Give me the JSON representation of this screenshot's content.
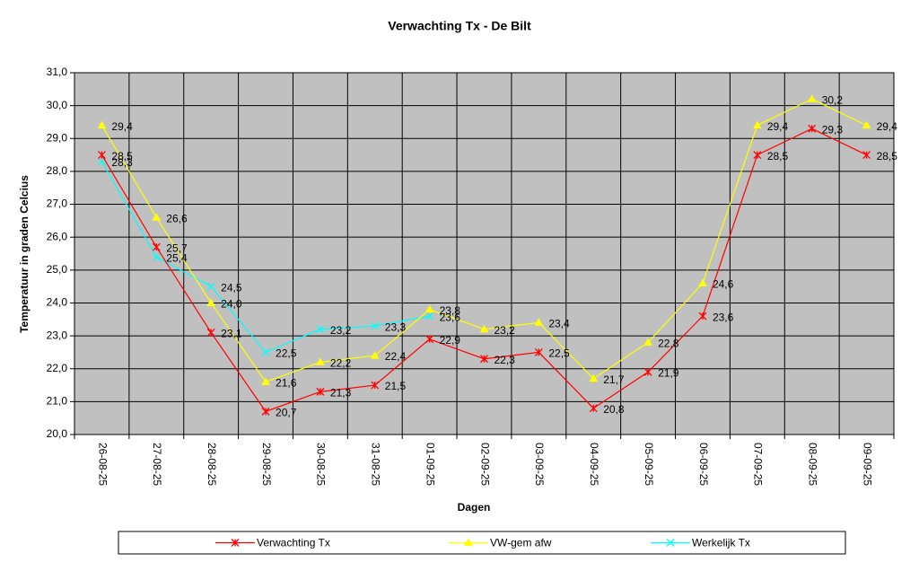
{
  "chart_data": {
    "type": "line",
    "title": "Verwachting Tx - De Bilt",
    "x_label": "Dagen",
    "y_label": "Temperatuur in graden Celcius",
    "categories": [
      "26-08-25",
      "27-08-25",
      "28-08-25",
      "29-08-25",
      "30-08-25",
      "31-08-25",
      "01-09-25",
      "02-09-25",
      "03-09-25",
      "04-09-25",
      "05-09-25",
      "06-09-25",
      "07-09-25",
      "08-09-25",
      "09-09-25"
    ],
    "series": [
      {
        "name": "Verwachting Tx",
        "color": "#ff0000",
        "marker": "star",
        "values": [
          28.5,
          25.7,
          23.1,
          20.7,
          21.3,
          21.5,
          22.9,
          22.3,
          22.5,
          20.8,
          21.9,
          23.6,
          28.5,
          29.3,
          28.5
        ],
        "value_labels": [
          "28,5",
          "25,7",
          "23,1",
          "20,7",
          "21,3",
          "21,5",
          "22,9",
          "22,3",
          "22,5",
          "20,8",
          "21,9",
          "23,6",
          "28,5",
          "29,3",
          "28,5"
        ]
      },
      {
        "name": "VW-gem afw",
        "color": "#ffff00",
        "marker": "triangle",
        "values": [
          29.4,
          26.6,
          24.0,
          21.6,
          22.2,
          22.4,
          23.8,
          23.2,
          23.4,
          21.7,
          22.8,
          24.6,
          29.4,
          30.2,
          29.4
        ],
        "value_labels": [
          "29,4",
          "26,6",
          "24,0",
          "21,6",
          "22,2",
          "22,4",
          "23,8",
          "23,2",
          "23,4",
          "21,7",
          "22,8",
          "24,6",
          "29,4",
          "30,2",
          "29,4"
        ]
      },
      {
        "name": "Werkelijk Tx",
        "color": "#00ffff",
        "marker": "x",
        "values": [
          28.3,
          25.4,
          24.5,
          22.5,
          23.2,
          23.3,
          23.6,
          null,
          null,
          null,
          null,
          null,
          null,
          null,
          null
        ],
        "value_labels": [
          "28,3",
          "25,4",
          "24,5",
          "22,5",
          "23,2",
          "23,3",
          "23,6",
          null,
          null,
          null,
          null,
          null,
          null,
          null,
          null
        ]
      }
    ],
    "ylim": [
      20,
      31
    ],
    "yticks": [
      {
        "value": 20,
        "label": "20,0"
      },
      {
        "value": 21,
        "label": "21,0"
      },
      {
        "value": 22,
        "label": "22,0"
      },
      {
        "value": 23,
        "label": "23,0"
      },
      {
        "value": 24,
        "label": "24,0"
      },
      {
        "value": 25,
        "label": "25,0"
      },
      {
        "value": 26,
        "label": "26,0"
      },
      {
        "value": 27,
        "label": "27,0"
      },
      {
        "value": 28,
        "label": "28,0"
      },
      {
        "value": 29,
        "label": "29,0"
      },
      {
        "value": 30,
        "label": "30,0"
      },
      {
        "value": 31,
        "label": "31,0"
      }
    ],
    "grid": true,
    "plot_background": "#c0c0c0",
    "legend": "bottom"
  }
}
